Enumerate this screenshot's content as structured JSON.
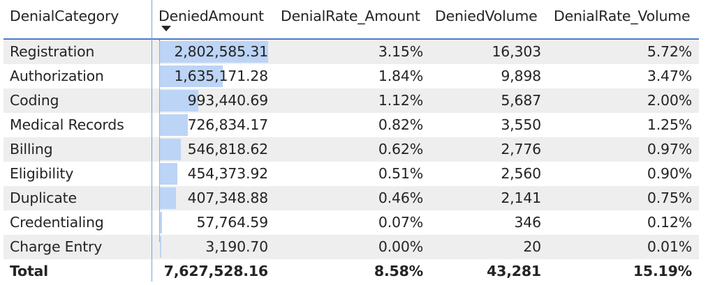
{
  "columns": {
    "category": "DenialCategory",
    "denied_amount": "DeniedAmount",
    "rate_amount": "DenialRate_Amount",
    "denied_volume": "DeniedVolume",
    "rate_volume": "DenialRate_Volume"
  },
  "sort_indicator": "sort-descending-icon",
  "rows": [
    {
      "category": "Registration",
      "denied_amount": "2,802,585.31",
      "rate_amount": "3.15%",
      "denied_volume": "16,303",
      "rate_volume": "5.72%"
    },
    {
      "category": "Authorization",
      "denied_amount": "1,635,171.28",
      "rate_amount": "1.84%",
      "denied_volume": "9,898",
      "rate_volume": "3.47%"
    },
    {
      "category": "Coding",
      "denied_amount": "993,440.69",
      "rate_amount": "1.12%",
      "denied_volume": "5,687",
      "rate_volume": "2.00%"
    },
    {
      "category": "Medical Records",
      "denied_amount": "726,834.17",
      "rate_amount": "0.82%",
      "denied_volume": "3,550",
      "rate_volume": "1.25%"
    },
    {
      "category": "Billing",
      "denied_amount": "546,818.62",
      "rate_amount": "0.62%",
      "denied_volume": "2,776",
      "rate_volume": "0.97%"
    },
    {
      "category": "Eligibility",
      "denied_amount": "454,373.92",
      "rate_amount": "0.51%",
      "denied_volume": "2,560",
      "rate_volume": "0.90%"
    },
    {
      "category": "Duplicate",
      "denied_amount": "407,348.88",
      "rate_amount": "0.46%",
      "denied_volume": "2,141",
      "rate_volume": "0.75%"
    },
    {
      "category": "Credentialing",
      "denied_amount": "57,764.59",
      "rate_amount": "0.07%",
      "denied_volume": "346",
      "rate_volume": "0.12%"
    },
    {
      "category": "Charge Entry",
      "denied_amount": "3,190.70",
      "rate_amount": "0.00%",
      "denied_volume": "20",
      "rate_volume": "0.01%"
    }
  ],
  "total": {
    "category": "Total",
    "denied_amount": "7,627,528.16",
    "rate_amount": "8.58%",
    "denied_volume": "43,281",
    "rate_volume": "15.19%"
  },
  "colors": {
    "data_bar": "#bcd4f6",
    "row_shade": "#eeeeee",
    "header_rule": "#4a7bd0"
  },
  "chart_data": {
    "type": "table",
    "columns": [
      "DenialCategory",
      "DeniedAmount",
      "DenialRate_Amount",
      "DeniedVolume",
      "DenialRate_Volume"
    ],
    "categories": [
      "Registration",
      "Authorization",
      "Coding",
      "Medical Records",
      "Billing",
      "Eligibility",
      "Duplicate",
      "Credentialing",
      "Charge Entry"
    ],
    "series": [
      {
        "name": "DeniedAmount",
        "values": [
          2802585.31,
          1635171.28,
          993440.69,
          726834.17,
          546818.62,
          454373.92,
          407348.88,
          57764.59,
          3190.7
        ]
      },
      {
        "name": "DenialRate_Amount",
        "values": [
          3.15,
          1.84,
          1.12,
          0.82,
          0.62,
          0.51,
          0.46,
          0.07,
          0.0
        ]
      },
      {
        "name": "DeniedVolume",
        "values": [
          16303,
          9898,
          5687,
          3550,
          2776,
          2560,
          2141,
          346,
          20
        ]
      },
      {
        "name": "DenialRate_Volume",
        "values": [
          5.72,
          3.47,
          2.0,
          1.25,
          0.97,
          0.9,
          0.75,
          0.12,
          0.01
        ]
      }
    ],
    "data_bars": {
      "column": "DeniedAmount",
      "color": "#bcd4f6"
    },
    "sort": {
      "column": "DeniedAmount",
      "order": "descending"
    }
  }
}
